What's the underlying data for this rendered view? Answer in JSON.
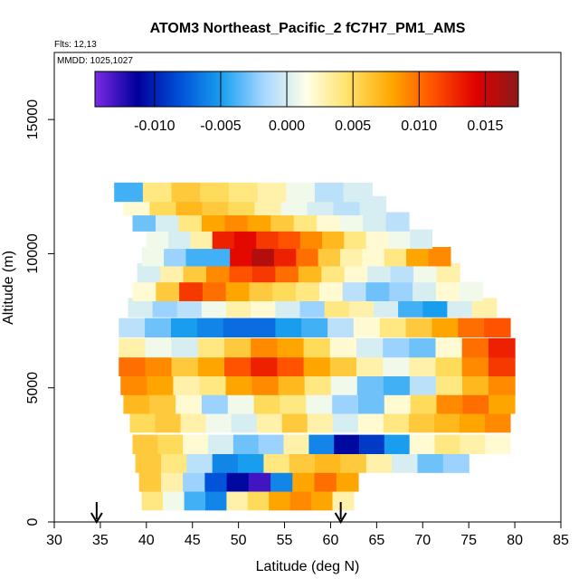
{
  "chart_data": {
    "type": "heatmap",
    "title": "ATOM3 Northeast_Pacific_2 fC7H7_PM1_AMS",
    "flights_label": "Flts: 12,13",
    "mmdd_label": "MMDD: 1025,1027",
    "xlabel": "Latitude (deg N)",
    "ylabel": "Altitude (m)",
    "xlim": [
      30,
      85
    ],
    "ylim": [
      0,
      17500
    ],
    "xticks": [
      "30",
      "35",
      "40",
      "45",
      "50",
      "55",
      "60",
      "65",
      "70",
      "75",
      "80",
      "85"
    ],
    "yticks": [
      {
        "value": 0,
        "label": "0"
      },
      {
        "value": 5000,
        "label": "5000"
      },
      {
        "value": 10000,
        "label": "10000"
      },
      {
        "value": 15000,
        "label": "15000"
      }
    ],
    "colorbar": {
      "min": -0.0145,
      "max": 0.0175,
      "tick_values": [
        -0.01,
        -0.005,
        0.0,
        0.005,
        0.01,
        0.015
      ],
      "tick_labels": [
        "-0.010",
        "-0.005",
        "0.000",
        "0.005",
        "0.010",
        "0.015"
      ],
      "colors": [
        "#7b2ae6",
        "#00009a",
        "#0050d8",
        "#1aa0f0",
        "#a8d8ff",
        "#ffffe6",
        "#ffe066",
        "#ffa800",
        "#ff5000",
        "#e00000",
        "#8b1a1a"
      ]
    },
    "arrows": [
      {
        "latitude": 34.6
      },
      {
        "latitude": 61.1
      }
    ],
    "layers": [
      {
        "alt": 800,
        "lat_start": 39.5,
        "lat_end": 62.5,
        "values": [
          0.004,
          0.001,
          -0.004,
          -0.006,
          0.003,
          0.005,
          0.008,
          0.009,
          0.008,
          0.003
        ]
      },
      {
        "alt": 1500,
        "lat_start": 39.2,
        "lat_end": 63.0,
        "values": [
          0.006,
          0.003,
          -0.002,
          -0.008,
          -0.011,
          -0.013,
          -0.006,
          0.008,
          0.01,
          0.008
        ]
      },
      {
        "alt": 2200,
        "lat_start": 38.8,
        "lat_end": 75.0,
        "values": [
          0.006,
          0.004,
          -0.001,
          -0.006,
          -0.005,
          0.004,
          0.006,
          0.007,
          0.006,
          0.003,
          0.0,
          -0.003,
          -0.002
        ]
      },
      {
        "alt": 2900,
        "lat_start": 38.5,
        "lat_end": 79.5,
        "values": [
          0.006,
          0.005,
          0.002,
          0.0,
          -0.003,
          -0.002,
          0.003,
          -0.006,
          -0.011,
          -0.009,
          -0.005,
          0.002,
          0.004,
          0.003,
          0.002
        ]
      },
      {
        "alt": 3700,
        "lat_start": 38.2,
        "lat_end": 79.5,
        "values": [
          0.005,
          0.006,
          0.003,
          0.001,
          0.0,
          0.003,
          0.006,
          0.003,
          0.0,
          0.002,
          0.004,
          0.006,
          0.007,
          0.008,
          0.009
        ]
      },
      {
        "alt": 4400,
        "lat_start": 37.5,
        "lat_end": 80.0,
        "values": [
          0.007,
          0.006,
          0.002,
          -0.002,
          0.001,
          0.005,
          0.004,
          0.001,
          -0.002,
          -0.003,
          0.002,
          0.005,
          0.009,
          0.01,
          0.008
        ]
      },
      {
        "alt": 5100,
        "lat_start": 37.2,
        "lat_end": 80.0,
        "values": [
          0.009,
          0.008,
          0.003,
          0.004,
          0.008,
          0.009,
          0.007,
          0.004,
          0.001,
          -0.003,
          -0.004,
          -0.001,
          0.004,
          0.007,
          0.009
        ]
      },
      {
        "alt": 5800,
        "lat_start": 37.0,
        "lat_end": 80.0,
        "values": [
          0.01,
          0.009,
          0.006,
          0.008,
          0.011,
          0.013,
          0.011,
          0.008,
          0.006,
          0.003,
          0.001,
          0.003,
          0.005,
          0.009,
          0.012
        ]
      },
      {
        "alt": 6500,
        "lat_start": 37.0,
        "lat_end": 80.0,
        "values": [
          0.003,
          0.001,
          0.0,
          0.004,
          0.006,
          0.009,
          0.008,
          0.005,
          0.002,
          0.0,
          -0.002,
          -0.003,
          0.002,
          0.01,
          0.013
        ]
      },
      {
        "alt": 7250,
        "lat_start": 37.0,
        "lat_end": 79.5,
        "values": [
          -0.001,
          -0.003,
          -0.005,
          -0.006,
          -0.007,
          -0.007,
          -0.005,
          -0.004,
          -0.001,
          0.002,
          0.004,
          0.006,
          0.008,
          0.01,
          0.011
        ]
      },
      {
        "alt": 8000,
        "lat_start": 38.0,
        "lat_end": 78.0,
        "values": [
          0.0,
          -0.002,
          -0.001,
          0.001,
          0.003,
          0.002,
          0.0,
          -0.002,
          0.004,
          0.003,
          0.0,
          -0.004,
          -0.005,
          0.0,
          0.003
        ]
      },
      {
        "alt": 8600,
        "lat_start": 38.5,
        "lat_end": 76.5,
        "values": [
          0.002,
          0.006,
          0.012,
          0.01,
          0.008,
          0.006,
          0.005,
          0.004,
          0.002,
          -0.001,
          -0.003,
          -0.002,
          0.0,
          0.002,
          0.001
        ]
      },
      {
        "alt": 9300,
        "lat_start": 39.0,
        "lat_end": 74.0,
        "values": [
          0.0,
          0.003,
          0.006,
          0.009,
          0.011,
          0.012,
          0.01,
          0.007,
          0.004,
          0.002,
          0.0,
          -0.001,
          0.001,
          0.003
        ]
      },
      {
        "alt": 9900,
        "lat_start": 39.5,
        "lat_end": 73.0,
        "values": [
          0.001,
          -0.002,
          -0.004,
          -0.004,
          0.014,
          0.016,
          0.013,
          0.01,
          0.006,
          0.003,
          0.002,
          0.004,
          0.008,
          0.009
        ]
      },
      {
        "alt": 10550,
        "lat_start": 40.0,
        "lat_end": 71.0,
        "values": [
          0.001,
          0.0,
          0.003,
          0.013,
          0.014,
          0.012,
          0.011,
          0.009,
          0.007,
          0.004,
          0.002,
          0.001,
          0.0
        ]
      },
      {
        "alt": 11200,
        "lat_start": 38.5,
        "lat_end": 68.5,
        "values": [
          -0.003,
          0.0,
          0.004,
          0.008,
          0.009,
          0.008,
          0.006,
          0.004,
          0.002,
          0.001,
          0.0,
          -0.001
        ]
      },
      {
        "alt": 11800,
        "lat_start": 37.5,
        "lat_end": 66.0,
        "values": [
          0.002,
          0.005,
          0.007,
          0.006,
          0.005,
          0.003,
          0.001,
          0.0,
          -0.001,
          0.0
        ]
      },
      {
        "alt": 12300,
        "lat_start": 36.5,
        "lat_end": 64.5,
        "values": [
          -0.004,
          0.004,
          0.006,
          0.005,
          0.004,
          0.003,
          0.001,
          -0.001,
          0.0
        ]
      }
    ]
  }
}
